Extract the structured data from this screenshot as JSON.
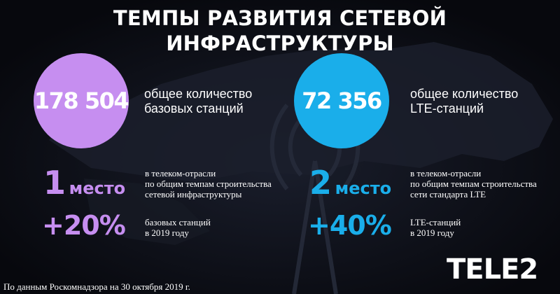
{
  "title": "ТЕМПЫ РАЗВИТИЯ СЕТЕВОЙ ИНФРАСТРУКТУРЫ",
  "colors": {
    "background": "#0b0d14",
    "purple": "#c68ef0",
    "blue": "#1aaeea",
    "map": "#222633"
  },
  "left": {
    "big_number": "178 504",
    "big_desc_line1": "общее количество",
    "big_desc_line2": "базовых станций",
    "rank_number": "1",
    "rank_word": "место",
    "rank_desc_line1": "в телеком-отрасли",
    "rank_desc_line2": "по общим темпам строительства",
    "rank_desc_line3": "сетевой инфраструктуры",
    "growth": "+20%",
    "growth_desc_line1": "базовых станций",
    "growth_desc_line2": "в 2019 году"
  },
  "right": {
    "big_number": "72 356",
    "big_desc_line1": "общее количество",
    "big_desc_line2": "LTE-станций",
    "rank_number": "2",
    "rank_word": "место",
    "rank_desc_line1": "в телеком-отрасли",
    "rank_desc_line2": "по общим темпам строительства",
    "rank_desc_line3": "сети стандарта LTE",
    "growth": "+40%",
    "growth_desc_line1": "LTE-станций",
    "growth_desc_line2": "в 2019 году"
  },
  "logo": "TELE2",
  "footnote": "По данным Роскомнадзора на 30 октября 2019 г."
}
